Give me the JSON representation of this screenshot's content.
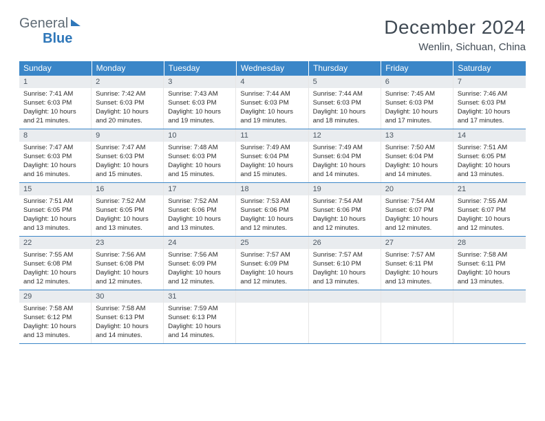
{
  "logo": {
    "line1": "General",
    "line2": "Blue"
  },
  "title": "December 2024",
  "location": "Wenlin, Sichuan, China",
  "colors": {
    "header_bg": "#3a86c8",
    "header_text": "#ffffff",
    "daynum_bg": "#e9ecef",
    "border": "#3a86c8",
    "text": "#2b2b2b",
    "title_color": "#404a54",
    "logo_gray": "#5f6b75",
    "logo_blue": "#2f77b9"
  },
  "weekdays": [
    "Sunday",
    "Monday",
    "Tuesday",
    "Wednesday",
    "Thursday",
    "Friday",
    "Saturday"
  ],
  "weeks": [
    [
      {
        "n": "1",
        "sr": "7:41 AM",
        "ss": "6:03 PM",
        "dl": "10 hours and 21 minutes."
      },
      {
        "n": "2",
        "sr": "7:42 AM",
        "ss": "6:03 PM",
        "dl": "10 hours and 20 minutes."
      },
      {
        "n": "3",
        "sr": "7:43 AM",
        "ss": "6:03 PM",
        "dl": "10 hours and 19 minutes."
      },
      {
        "n": "4",
        "sr": "7:44 AM",
        "ss": "6:03 PM",
        "dl": "10 hours and 19 minutes."
      },
      {
        "n": "5",
        "sr": "7:44 AM",
        "ss": "6:03 PM",
        "dl": "10 hours and 18 minutes."
      },
      {
        "n": "6",
        "sr": "7:45 AM",
        "ss": "6:03 PM",
        "dl": "10 hours and 17 minutes."
      },
      {
        "n": "7",
        "sr": "7:46 AM",
        "ss": "6:03 PM",
        "dl": "10 hours and 17 minutes."
      }
    ],
    [
      {
        "n": "8",
        "sr": "7:47 AM",
        "ss": "6:03 PM",
        "dl": "10 hours and 16 minutes."
      },
      {
        "n": "9",
        "sr": "7:47 AM",
        "ss": "6:03 PM",
        "dl": "10 hours and 15 minutes."
      },
      {
        "n": "10",
        "sr": "7:48 AM",
        "ss": "6:03 PM",
        "dl": "10 hours and 15 minutes."
      },
      {
        "n": "11",
        "sr": "7:49 AM",
        "ss": "6:04 PM",
        "dl": "10 hours and 15 minutes."
      },
      {
        "n": "12",
        "sr": "7:49 AM",
        "ss": "6:04 PM",
        "dl": "10 hours and 14 minutes."
      },
      {
        "n": "13",
        "sr": "7:50 AM",
        "ss": "6:04 PM",
        "dl": "10 hours and 14 minutes."
      },
      {
        "n": "14",
        "sr": "7:51 AM",
        "ss": "6:05 PM",
        "dl": "10 hours and 13 minutes."
      }
    ],
    [
      {
        "n": "15",
        "sr": "7:51 AM",
        "ss": "6:05 PM",
        "dl": "10 hours and 13 minutes."
      },
      {
        "n": "16",
        "sr": "7:52 AM",
        "ss": "6:05 PM",
        "dl": "10 hours and 13 minutes."
      },
      {
        "n": "17",
        "sr": "7:52 AM",
        "ss": "6:06 PM",
        "dl": "10 hours and 13 minutes."
      },
      {
        "n": "18",
        "sr": "7:53 AM",
        "ss": "6:06 PM",
        "dl": "10 hours and 12 minutes."
      },
      {
        "n": "19",
        "sr": "7:54 AM",
        "ss": "6:06 PM",
        "dl": "10 hours and 12 minutes."
      },
      {
        "n": "20",
        "sr": "7:54 AM",
        "ss": "6:07 PM",
        "dl": "10 hours and 12 minutes."
      },
      {
        "n": "21",
        "sr": "7:55 AM",
        "ss": "6:07 PM",
        "dl": "10 hours and 12 minutes."
      }
    ],
    [
      {
        "n": "22",
        "sr": "7:55 AM",
        "ss": "6:08 PM",
        "dl": "10 hours and 12 minutes."
      },
      {
        "n": "23",
        "sr": "7:56 AM",
        "ss": "6:08 PM",
        "dl": "10 hours and 12 minutes."
      },
      {
        "n": "24",
        "sr": "7:56 AM",
        "ss": "6:09 PM",
        "dl": "10 hours and 12 minutes."
      },
      {
        "n": "25",
        "sr": "7:57 AM",
        "ss": "6:09 PM",
        "dl": "10 hours and 12 minutes."
      },
      {
        "n": "26",
        "sr": "7:57 AM",
        "ss": "6:10 PM",
        "dl": "10 hours and 13 minutes."
      },
      {
        "n": "27",
        "sr": "7:57 AM",
        "ss": "6:11 PM",
        "dl": "10 hours and 13 minutes."
      },
      {
        "n": "28",
        "sr": "7:58 AM",
        "ss": "6:11 PM",
        "dl": "10 hours and 13 minutes."
      }
    ],
    [
      {
        "n": "29",
        "sr": "7:58 AM",
        "ss": "6:12 PM",
        "dl": "10 hours and 13 minutes."
      },
      {
        "n": "30",
        "sr": "7:58 AM",
        "ss": "6:13 PM",
        "dl": "10 hours and 14 minutes."
      },
      {
        "n": "31",
        "sr": "7:59 AM",
        "ss": "6:13 PM",
        "dl": "10 hours and 14 minutes."
      },
      null,
      null,
      null,
      null
    ]
  ],
  "labels": {
    "sunrise": "Sunrise:",
    "sunset": "Sunset:",
    "daylight": "Daylight:"
  }
}
